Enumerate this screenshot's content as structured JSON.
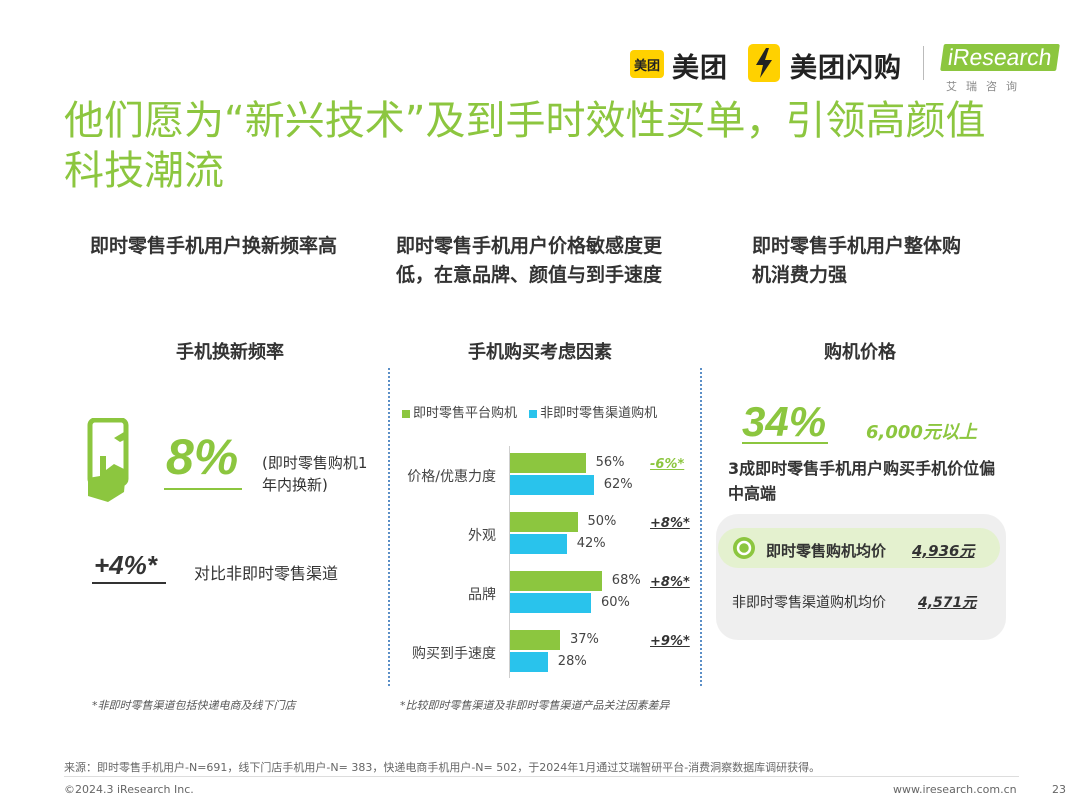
{
  "header": {
    "meituan_box": "美团",
    "meituan": "美团",
    "shangou": "美团闪购",
    "iresearch": "iResearch",
    "iresearch_cn": "艾瑞咨询"
  },
  "title": "他们愿为“新兴技术”及到手时效性买单，引领高颜值科技潮流",
  "columns": {
    "c1_head": "即时零售手机用户换新频率高",
    "c2_head": "即时零售手机用户价格敏感度更低，在意品牌、颜值与到手速度",
    "c3_head": "即时零售手机用户整体购机消费力强"
  },
  "left": {
    "subtitle": "手机换新频率",
    "big_value": "8%",
    "big_desc": "(即时零售购机1年内换新)",
    "compare_value": "+4%*",
    "compare_desc": "对比非即时零售渠道",
    "note": "*非即时零售渠道包括快递电商及线下门店"
  },
  "middle": {
    "subtitle": "手机购买考虑因素",
    "note": "*比较即时零售渠道及非即时零售渠道产品关注因素差异"
  },
  "chart_data": {
    "type": "bar",
    "orientation": "horizontal",
    "categories": [
      "价格/优惠力度",
      "外观",
      "品牌",
      "购买到手速度"
    ],
    "series": [
      {
        "name": "即时零售平台购机",
        "color": "#8CC63F",
        "values": [
          56,
          50,
          68,
          37
        ]
      },
      {
        "name": "非即时零售渠道购机",
        "color": "#29C3EC",
        "values": [
          62,
          42,
          60,
          28
        ]
      }
    ],
    "value_labels": [
      [
        "56%",
        "62%"
      ],
      [
        "50%",
        "42%"
      ],
      [
        "68%",
        "60%"
      ],
      [
        "37%",
        "28%"
      ]
    ],
    "differences": [
      "-6%*",
      "+8%*",
      "+8%*",
      "+9%*"
    ],
    "diff_colors": [
      "#8CC63F",
      "#333333",
      "#333333",
      "#333333"
    ]
  },
  "right": {
    "subtitle": "购机价格",
    "pct": "34%",
    "pct_desc": "6,000元以上",
    "summary": "3成即时零售手机用户购买手机价位偏中高端",
    "avg1_label": "即时零售购机均价",
    "avg1_value": "4,936元",
    "avg2_label": "非即时零售渠道购机均价",
    "avg2_value": "4,571元"
  },
  "footer": {
    "source": "来源：即时零售手机用户-N=691，线下门店手机用户-N= 383，快递电商手机用户-N= 502，于2024年1月通过艾瑞智研平台-消费洞察数据库调研获得。",
    "copyright": "©2024.3 iResearch Inc.",
    "website": "www.iresearch.com.cn",
    "page": "23"
  }
}
